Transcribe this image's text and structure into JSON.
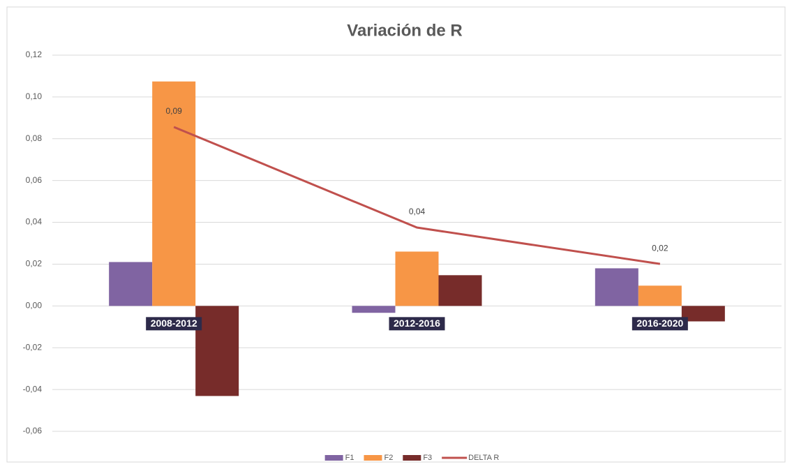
{
  "chart_data": {
    "type": "bar",
    "title": "Variación de R",
    "categories": [
      "2008-2012",
      "2012-2016",
      "2016-2020"
    ],
    "series": [
      {
        "name": "F1",
        "type": "bar",
        "color": "#8064a2",
        "values": [
          0.021,
          -0.0033,
          0.018
        ]
      },
      {
        "name": "F2",
        "type": "bar",
        "color": "#f79646",
        "values": [
          0.1074,
          0.026,
          0.0097
        ]
      },
      {
        "name": "F3",
        "type": "bar",
        "color": "#772c2a",
        "values": [
          -0.0431,
          0.0147,
          -0.0074
        ]
      },
      {
        "name": "DELTA R",
        "type": "line",
        "color": "#c0504d",
        "values": [
          0.0856,
          0.0375,
          0.0201
        ],
        "value_labels": [
          "0,09",
          "0,04",
          "0,02"
        ]
      }
    ],
    "ylim": [
      -0.06,
      0.12
    ],
    "yticks": [
      {
        "value": -0.06,
        "label": "-0,06"
      },
      {
        "value": -0.04,
        "label": "-0,04"
      },
      {
        "value": -0.02,
        "label": "-0,02"
      },
      {
        "value": 0,
        "label": "0,00"
      },
      {
        "value": 0.02,
        "label": "0,02"
      },
      {
        "value": 0.04,
        "label": "0,04"
      },
      {
        "value": 0.06,
        "label": "0,06"
      },
      {
        "value": 0.08,
        "label": "0,08"
      },
      {
        "value": 0.1,
        "label": "0,10"
      },
      {
        "value": 0.12,
        "label": "0,12"
      }
    ],
    "grid": true,
    "legend": "bottom"
  }
}
